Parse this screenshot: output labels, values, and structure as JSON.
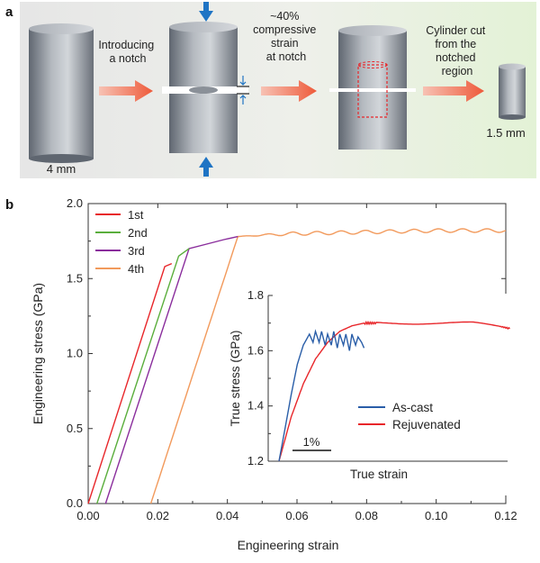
{
  "panel_a": {
    "label": "a",
    "steps": [
      {
        "lines": [
          "Introducing",
          "a notch"
        ]
      },
      {
        "lines": [
          "~40%",
          "compressive",
          "strain",
          "at notch"
        ]
      },
      {
        "lines": [
          "Cylinder cut",
          "from the",
          "notched",
          "region"
        ]
      }
    ],
    "dim_large": "4 mm",
    "dim_small": "1.5 mm"
  },
  "panel_b": {
    "label": "b"
  },
  "colors": {
    "first": "#e8262a",
    "second": "#5aae3c",
    "third": "#8a2d9c",
    "fourth": "#f29a5c",
    "ascast": "#2a5ea8",
    "rejuvenated": "#e8262a"
  },
  "chart_data": [
    {
      "type": "line",
      "xlabel": "Engineering strain",
      "ylabel": "Engineering stress (GPa)",
      "xlim": [
        0,
        0.12
      ],
      "ylim": [
        0,
        2.0
      ],
      "xticks": [
        "0.00",
        "0.02",
        "0.04",
        "0.06",
        "0.08",
        "0.10",
        "0.12"
      ],
      "yticks": [
        "0.0",
        "0.5",
        "1.0",
        "1.5",
        "2.0"
      ],
      "legend_position": "top-left",
      "series": [
        {
          "name": "1st",
          "x": [
            0.0,
            0.022,
            0.024
          ],
          "y": [
            0.0,
            1.58,
            1.6
          ]
        },
        {
          "name": "2nd",
          "x": [
            0.0025,
            0.026,
            0.029
          ],
          "y": [
            0.0,
            1.65,
            1.7
          ]
        },
        {
          "name": "3rd",
          "x": [
            0.005,
            0.029,
            0.034,
            0.039,
            0.043
          ],
          "y": [
            0.0,
            1.7,
            1.73,
            1.76,
            1.78
          ]
        },
        {
          "name": "4th",
          "x": [
            0.018,
            0.043,
            0.05,
            0.06,
            0.08,
            0.1,
            0.12
          ],
          "y": [
            0.0,
            1.78,
            1.79,
            1.8,
            1.81,
            1.82,
            1.82
          ]
        }
      ]
    },
    {
      "type": "line",
      "inset": true,
      "xlabel": "True strain",
      "ylabel": "True stress (GPa)",
      "ylim": [
        1.2,
        1.8
      ],
      "yticks": [
        "1.2",
        "1.4",
        "1.6",
        "1.8"
      ],
      "scale_bar": "1%",
      "legend_position": "bottom-right",
      "series": [
        {
          "name": "As-cast",
          "x": [
            0,
            0.5,
            1.0,
            1.5,
            2.0,
            2.5,
            2.8,
            3.0,
            3.3,
            3.5,
            3.8,
            4.0,
            4.3,
            4.5,
            4.8,
            5.0,
            5.3,
            5.5,
            5.8,
            6.0,
            6.3,
            6.5,
            6.8,
            7.0
          ],
          "y": [
            1.2,
            1.32,
            1.44,
            1.55,
            1.62,
            1.66,
            1.63,
            1.67,
            1.63,
            1.67,
            1.62,
            1.66,
            1.62,
            1.67,
            1.61,
            1.66,
            1.62,
            1.66,
            1.6,
            1.66,
            1.62,
            1.65,
            1.63,
            1.61
          ]
        },
        {
          "name": "Rejuvenated",
          "x": [
            0,
            1,
            2,
            3,
            4,
            5,
            6,
            7,
            8,
            10,
            12,
            14,
            16,
            18,
            19
          ],
          "y": [
            1.2,
            1.36,
            1.48,
            1.57,
            1.63,
            1.67,
            1.69,
            1.7,
            1.7,
            1.7,
            1.7,
            1.7,
            1.7,
            1.69,
            1.68
          ]
        }
      ]
    }
  ]
}
